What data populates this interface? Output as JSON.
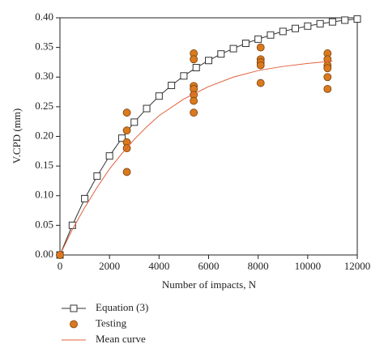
{
  "chart_data": {
    "type": "line",
    "x_label": "Number of impacts, N",
    "y_label": "V.CPD (mm)",
    "xlim": [
      0,
      12000
    ],
    "xticks": [
      0,
      2000,
      4000,
      6000,
      8000,
      10000,
      12000
    ],
    "ylim": [
      0,
      0.4
    ],
    "yticks": [
      {
        "value": 0,
        "label": "0.00"
      },
      0.05,
      {
        "value": 0.1,
        "label": "0.10"
      },
      0.15,
      {
        "value": 0.2,
        "label": "0.20"
      },
      0.25,
      {
        "value": 0.3,
        "label": "0.30"
      },
      0.35,
      {
        "value": 0.4,
        "label": "0.40"
      }
    ],
    "series": [
      {
        "name": "Equation (3)",
        "color": "#333333",
        "marker": "square",
        "line": true,
        "x": [
          0,
          500,
          1000,
          1500,
          2000,
          2500,
          3000,
          3500,
          4000,
          4500,
          5000,
          5500,
          6000,
          6500,
          7000,
          7500,
          8000,
          8500,
          9000,
          9500,
          10000,
          10500,
          11000,
          11500,
          12000
        ],
        "values": [
          0,
          0.05,
          0.095,
          0.133,
          0.167,
          0.197,
          0.224,
          0.247,
          0.268,
          0.286,
          0.302,
          0.316,
          0.328,
          0.339,
          0.348,
          0.357,
          0.364,
          0.371,
          0.377,
          0.382,
          0.386,
          0.39,
          0.393,
          0.396,
          0.398
        ]
      },
      {
        "name": "Testing",
        "color": "#d97a1e",
        "marker": "circle",
        "line": false,
        "x": [
          0,
          2700,
          2700,
          2700,
          2700,
          2700,
          5400,
          5400,
          5400,
          5400,
          5400,
          5400,
          5400,
          8100,
          8100,
          8100,
          8100,
          8100,
          10800,
          10800,
          10800,
          10800,
          10800,
          10800
        ],
        "values": [
          0,
          0.24,
          0.21,
          0.19,
          0.18,
          0.14,
          0.34,
          0.33,
          0.285,
          0.28,
          0.27,
          0.26,
          0.24,
          0.35,
          0.33,
          0.325,
          0.32,
          0.29,
          0.34,
          0.33,
          0.32,
          0.315,
          0.3,
          0.28
        ]
      },
      {
        "name": "Mean curve",
        "color": "#e0603c",
        "marker": "none",
        "line": true,
        "x": [
          0,
          500,
          1000,
          1500,
          2000,
          2500,
          3000,
          3500,
          4000,
          5000,
          6000,
          7000,
          8000,
          9000,
          10000,
          11000
        ],
        "values": [
          0,
          0.043,
          0.08,
          0.114,
          0.145,
          0.171,
          0.195,
          0.216,
          0.235,
          0.263,
          0.284,
          0.3,
          0.311,
          0.318,
          0.323,
          0.327
        ]
      }
    ]
  }
}
